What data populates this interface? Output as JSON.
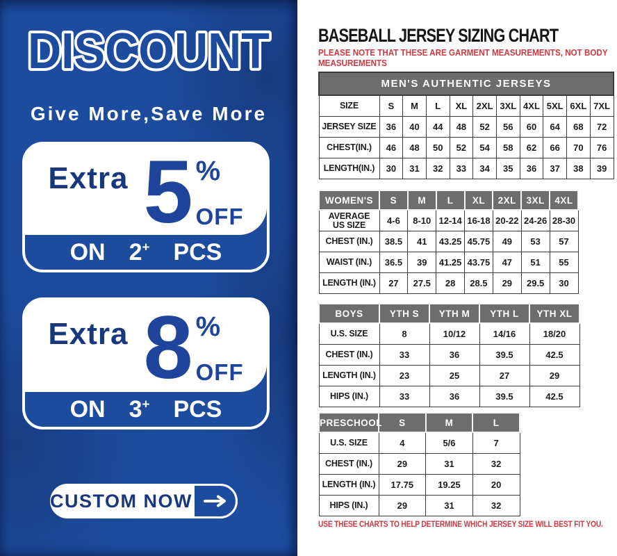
{
  "colors": {
    "panel_blue": "#1d4c9e",
    "deep_blue_text": "#17387f",
    "number_blue": "#1f449b",
    "note_red": "#cf3940",
    "table_header_gray": "#6d6d6d",
    "table_border": "#3a3a3a"
  },
  "left_panel": {
    "discount_title": "DISCOUNT",
    "tagline": "Give More,Save More",
    "offers": [
      {
        "prefix": "Extra",
        "percent": "5",
        "percent_sign": "%",
        "off": "OFF",
        "on": "ON",
        "qty": "2",
        "plus": "+",
        "pcs": "PCS"
      },
      {
        "prefix": "Extra",
        "percent": "8",
        "percent_sign": "%",
        "off": "OFF",
        "on": "ON",
        "qty": "3",
        "plus": "+",
        "pcs": "PCS"
      }
    ],
    "custom_button": {
      "label": "CUSTOM NOW",
      "arrow_icon": "arrow-right"
    }
  },
  "right_panel": {
    "title": "BASEBALL JERSEY SIZING CHART",
    "note_top_lines": [
      "PLEASE NOTE THAT THESE ARE GARMENT MEASUREMENTS, NOT BODY",
      "MEASUREMENTS"
    ],
    "note_bottom": "USE THESE CHARTS TO HELP DETERMINE WHICH JERSEY SIZE WILL BEST FIT YOU.",
    "tables": [
      {
        "banner": "MEN'S AUTHENTIC JERSEYS",
        "rows": [
          [
            "SIZE",
            "S",
            "M",
            "L",
            "XL",
            "2XL",
            "3XL",
            "4XL",
            "5XL",
            "6XL",
            "7XL"
          ],
          [
            "JERSEY SIZE",
            "36",
            "40",
            "44",
            "48",
            "52",
            "56",
            "60",
            "64",
            "68",
            "72"
          ],
          [
            "CHEST(IN.)",
            "46",
            "48",
            "50",
            "52",
            "54",
            "58",
            "62",
            "66",
            "70",
            "76"
          ],
          [
            "LENGTH(IN.)",
            "30",
            "31",
            "32",
            "33",
            "34",
            "35",
            "36",
            "37",
            "38",
            "39"
          ]
        ]
      },
      {
        "header_row": [
          "WOMEN'S",
          "S",
          "M",
          "L",
          "XL",
          "2XL",
          "3XL",
          "4XL"
        ],
        "rows": [
          [
            "AVERAGE\nUS SIZE",
            "4-6",
            "8-10",
            "12-14",
            "16-18",
            "20-22",
            "24-26",
            "28-30"
          ],
          [
            "CHEST (IN.)",
            "38.5",
            "41",
            "43.25",
            "45.75",
            "49",
            "53",
            "57"
          ],
          [
            "WAIST (IN.)",
            "36.5",
            "39",
            "41.25",
            "43.75",
            "47",
            "51",
            "55"
          ],
          [
            "LENGTH (IN.)",
            "27",
            "27.5",
            "28",
            "28.5",
            "29",
            "29.5",
            "30"
          ]
        ]
      },
      {
        "header_row": [
          "BOYS",
          "YTH S",
          "YTH M",
          "YTH L",
          "YTH XL"
        ],
        "rows": [
          [
            "U.S. SIZE",
            "8",
            "10/12",
            "14/16",
            "18/20"
          ],
          [
            "CHEST (IN.)",
            "33",
            "36",
            "39.5",
            "42.5"
          ],
          [
            "LENGTH (IN.)",
            "23",
            "25",
            "27",
            "29"
          ],
          [
            "HIPS (IN.)",
            "33",
            "36",
            "39.5",
            "42.5"
          ]
        ]
      },
      {
        "header_row": [
          "PRESCHOOL",
          "S",
          "M",
          "L"
        ],
        "rows": [
          [
            "U.S. SIZE",
            "4",
            "5/6",
            "7"
          ],
          [
            "CHEST (IN.)",
            "29",
            "31",
            "32"
          ],
          [
            "LENGTH (IN.)",
            "17.75",
            "19.25",
            "20"
          ],
          [
            "HIPS (IN.)",
            "29",
            "31",
            "32"
          ]
        ]
      }
    ]
  }
}
